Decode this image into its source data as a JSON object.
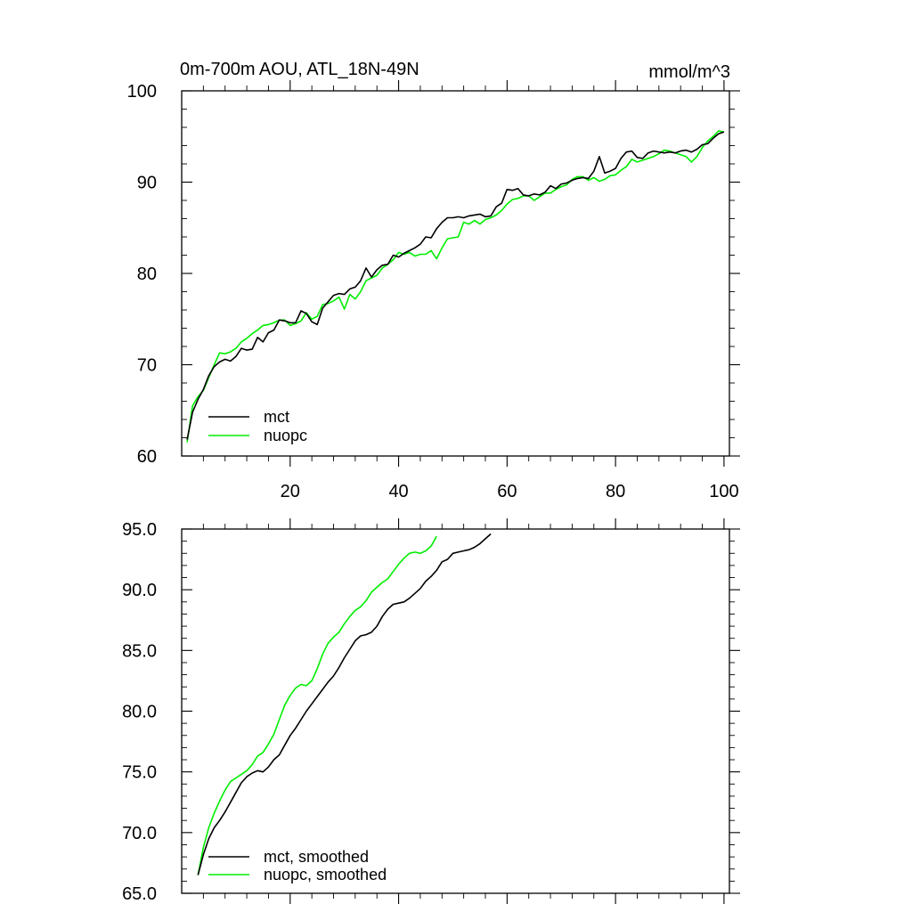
{
  "chart_data": [
    {
      "type": "line",
      "title_left": "0m-700m AOU, ATL_18N-49N",
      "title_right": "mmol/m^3",
      "xlim": [
        0,
        101
      ],
      "ylim": [
        60,
        100
      ],
      "xticks": [
        20,
        40,
        60,
        80,
        100
      ],
      "xtick_labels": [
        "20",
        "40",
        "60",
        "80",
        "100"
      ],
      "yticks": [
        60,
        70,
        80,
        90,
        100
      ],
      "ytick_labels": [
        "60",
        "70",
        "80",
        "90",
        "100"
      ],
      "x_start": 1,
      "legend_position": "bottom-left",
      "series": [
        {
          "name": "mct",
          "color": "#000000",
          "values": [
            61.8,
            64.8,
            66.2,
            67.3,
            68.8,
            69.8,
            70.3,
            70.6,
            70.4,
            70.9,
            71.8,
            71.6,
            71.7,
            73.0,
            72.5,
            73.5,
            73.8,
            74.9,
            74.8,
            74.6,
            74.6,
            75.9,
            75.6,
            74.7,
            74.4,
            76.2,
            76.9,
            77.6,
            77.8,
            77.7,
            78.3,
            78.5,
            79.2,
            80.6,
            79.6,
            80.4,
            80.9,
            81.0,
            82.0,
            81.8,
            82.2,
            82.5,
            82.8,
            83.2,
            84.0,
            83.9,
            84.9,
            85.6,
            86.1,
            86.1,
            86.2,
            86.1,
            86.3,
            86.4,
            86.5,
            86.2,
            86.3,
            87.3,
            87.7,
            89.2,
            89.1,
            89.3,
            88.6,
            88.5,
            88.7,
            88.6,
            88.9,
            89.6,
            89.3,
            89.8,
            89.9,
            90.2,
            90.4,
            90.5,
            90.4,
            91.2,
            92.8,
            91.0,
            91.2,
            91.5,
            92.6,
            93.3,
            93.4,
            92.7,
            92.6,
            93.2,
            93.4,
            93.3,
            93.2,
            93.3,
            93.2,
            93.4,
            93.5,
            93.3,
            93.6,
            94.1,
            94.2,
            94.8,
            95.3,
            95.5
          ],
          "legend_label": "mct"
        },
        {
          "name": "nuopc",
          "color": "#00ee00",
          "values": [
            61.5,
            65.5,
            66.5,
            67.2,
            68.6,
            70.0,
            71.3,
            71.2,
            71.4,
            71.8,
            72.5,
            72.9,
            73.4,
            73.8,
            74.3,
            74.4,
            74.6,
            74.9,
            74.9,
            74.3,
            74.5,
            74.8,
            75.7,
            75.0,
            75.3,
            76.6,
            76.7,
            77.0,
            77.4,
            76.1,
            77.7,
            77.2,
            78.0,
            79.2,
            79.5,
            79.8,
            80.6,
            81.0,
            81.5,
            82.3,
            82.1,
            82.3,
            81.9,
            82.1,
            82.1,
            82.5,
            81.6,
            82.8,
            83.8,
            83.9,
            84.0,
            85.6,
            85.4,
            85.8,
            85.4,
            85.9,
            86.1,
            86.4,
            86.9,
            87.6,
            88.1,
            88.2,
            88.5,
            88.5,
            88.0,
            88.4,
            88.8,
            88.8,
            89.2,
            89.5,
            89.7,
            90.3,
            90.6,
            90.6,
            90.2,
            90.5,
            90.1,
            90.3,
            90.7,
            90.8,
            91.3,
            91.7,
            92.5,
            92.2,
            92.4,
            92.6,
            92.8,
            93.1,
            93.5,
            93.4,
            93.2,
            93.0,
            92.8,
            92.2,
            92.8,
            93.8,
            94.5,
            95.0,
            95.6,
            95.5
          ],
          "legend_label": "nuopc"
        }
      ]
    },
    {
      "type": "line",
      "xlim": [
        0,
        101
      ],
      "ylim": [
        65,
        95
      ],
      "xticks": [
        20,
        40,
        60,
        80,
        100
      ],
      "yticks": [
        65,
        70,
        75,
        80,
        85,
        90,
        95
      ],
      "ytick_labels": [
        "65.0",
        "70.0",
        "75.0",
        "80.0",
        "85.0",
        "90.0",
        "95.0"
      ],
      "x_start": 3,
      "legend_position": "bottom-left",
      "series": [
        {
          "name": "mct, smoothed",
          "color": "#000000",
          "values": [
            66.5,
            68.2,
            69.5,
            70.4,
            71.0,
            71.7,
            72.5,
            73.3,
            74.1,
            74.6,
            74.9,
            75.1,
            75.0,
            75.4,
            76.0,
            76.4,
            77.2,
            78.0,
            78.6,
            79.3,
            80.0,
            80.6,
            81.2,
            81.8,
            82.4,
            82.9,
            83.6,
            84.4,
            85.1,
            85.8,
            86.2,
            86.3,
            86.5,
            87.0,
            87.8,
            88.4,
            88.8,
            88.9,
            89.0,
            89.3,
            89.7,
            90.1,
            90.7,
            91.1,
            91.6,
            92.3,
            92.5,
            93.0,
            93.1,
            93.2,
            93.3,
            93.5,
            93.8,
            94.2,
            94.6
          ],
          "legend_label": "mct, smoothed"
        },
        {
          "name": "nuopc, smoothed",
          "color": "#00ee00",
          "values": [
            66.5,
            68.8,
            70.4,
            71.6,
            72.6,
            73.5,
            74.2,
            74.5,
            74.8,
            75.1,
            75.6,
            76.3,
            76.6,
            77.3,
            78.1,
            79.3,
            80.5,
            81.3,
            81.9,
            82.2,
            82.1,
            82.5,
            83.5,
            84.7,
            85.6,
            86.1,
            86.5,
            87.2,
            87.8,
            88.3,
            88.6,
            89.1,
            89.8,
            90.2,
            90.6,
            90.9,
            91.5,
            92.1,
            92.6,
            93.0,
            93.1,
            93.0,
            93.2,
            93.6,
            94.4
          ],
          "legend_label": "nuopc, smoothed"
        }
      ]
    }
  ]
}
